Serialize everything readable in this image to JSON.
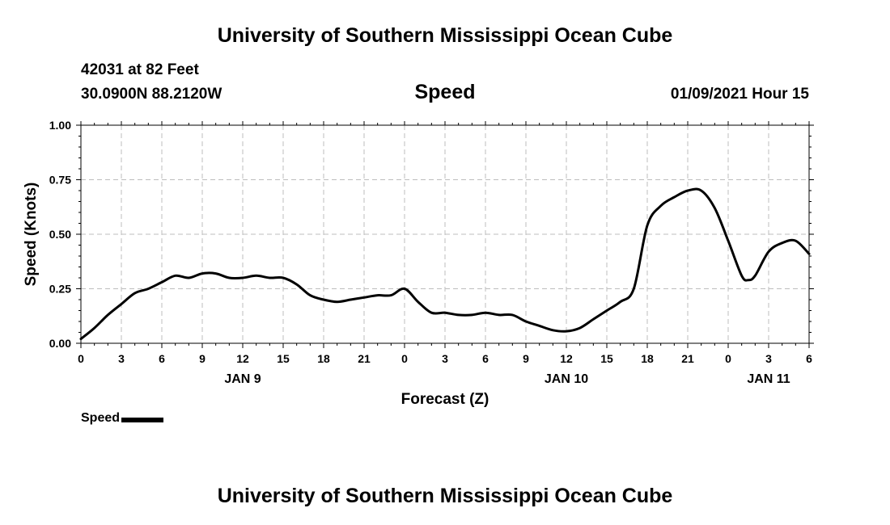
{
  "header": {
    "title": "University of Southern Mississippi Ocean Cube",
    "station": "42031 at 82 Feet",
    "coords": "30.0900N 88.2120W",
    "panel_title": "Speed",
    "timestamp": "01/09/2021 Hour 15"
  },
  "footer": {
    "title": "University of Southern Mississippi Ocean Cube"
  },
  "legend": {
    "label": "Speed",
    "color": "#000000"
  },
  "chart_data": {
    "type": "line",
    "xlabel": "Forecast (Z)",
    "ylabel": "Speed (Knots)",
    "x_unit": "forecast hours from 00Z JAN 9",
    "xlim": [
      0,
      54
    ],
    "ylim": [
      0,
      1
    ],
    "grid": true,
    "x_ticks": [
      {
        "x": 0,
        "label": "0"
      },
      {
        "x": 3,
        "label": "3"
      },
      {
        "x": 6,
        "label": "6"
      },
      {
        "x": 9,
        "label": "9"
      },
      {
        "x": 12,
        "label": "12"
      },
      {
        "x": 15,
        "label": "15"
      },
      {
        "x": 18,
        "label": "18"
      },
      {
        "x": 21,
        "label": "21"
      },
      {
        "x": 24,
        "label": "0"
      },
      {
        "x": 27,
        "label": "3"
      },
      {
        "x": 30,
        "label": "6"
      },
      {
        "x": 33,
        "label": "9"
      },
      {
        "x": 36,
        "label": "12"
      },
      {
        "x": 39,
        "label": "15"
      },
      {
        "x": 42,
        "label": "18"
      },
      {
        "x": 45,
        "label": "21"
      },
      {
        "x": 48,
        "label": "0"
      },
      {
        "x": 51,
        "label": "3"
      },
      {
        "x": 54,
        "label": "6"
      }
    ],
    "date_labels": [
      {
        "x": 12,
        "label": "JAN 9"
      },
      {
        "x": 36,
        "label": "JAN 10"
      },
      {
        "x": 51,
        "label": "JAN 11"
      }
    ],
    "y_ticks": [
      {
        "y": 0,
        "label": "0.00"
      },
      {
        "y": 0.25,
        "label": "0.25"
      },
      {
        "y": 0.5,
        "label": "0.50"
      },
      {
        "y": 0.75,
        "label": "0.75"
      },
      {
        "y": 1,
        "label": "1.00"
      }
    ],
    "series": [
      {
        "name": "Speed",
        "color": "#000000",
        "x": [
          0,
          1,
          2,
          3,
          4,
          5,
          6,
          7,
          8,
          9,
          10,
          11,
          12,
          13,
          14,
          15,
          16,
          17,
          18,
          19,
          20,
          21,
          22,
          23,
          24,
          25,
          26,
          27,
          28,
          29,
          30,
          31,
          32,
          33,
          34,
          35,
          36,
          37,
          38,
          39,
          40,
          41,
          42,
          43,
          44,
          45,
          46,
          47,
          48,
          49,
          49.5,
          50,
          51,
          52,
          53,
          54
        ],
        "y": [
          0.02,
          0.07,
          0.13,
          0.18,
          0.23,
          0.25,
          0.28,
          0.31,
          0.3,
          0.32,
          0.32,
          0.3,
          0.3,
          0.31,
          0.3,
          0.3,
          0.27,
          0.22,
          0.2,
          0.19,
          0.2,
          0.21,
          0.22,
          0.22,
          0.25,
          0.19,
          0.14,
          0.14,
          0.13,
          0.13,
          0.14,
          0.13,
          0.13,
          0.1,
          0.08,
          0.06,
          0.055,
          0.07,
          0.11,
          0.15,
          0.19,
          0.25,
          0.54,
          0.63,
          0.67,
          0.7,
          0.7,
          0.62,
          0.47,
          0.31,
          0.29,
          0.31,
          0.42,
          0.46,
          0.47,
          0.41
        ]
      }
    ]
  }
}
